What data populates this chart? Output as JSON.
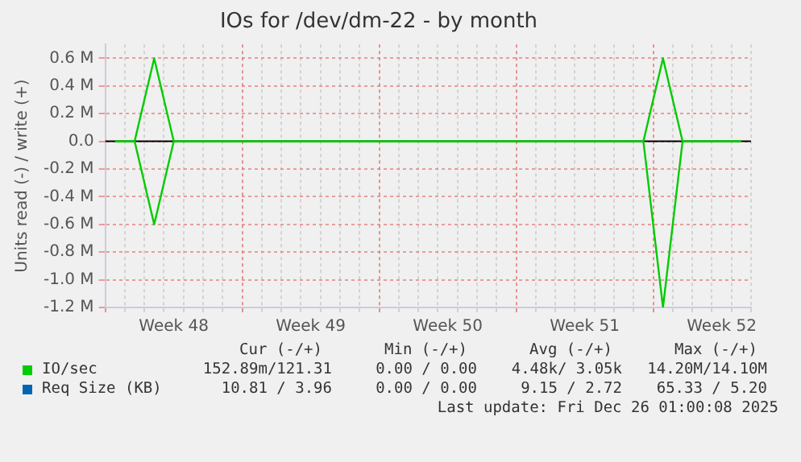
{
  "chart_data": {
    "type": "line",
    "title": "IOs for /dev/dm-22 - by month",
    "ylabel": "Units read (-) / write (+)",
    "categories": [
      null,
      null,
      null,
      "Week 48",
      null,
      null,
      null,
      null,
      null,
      null,
      "Week 49",
      null,
      null,
      null,
      null,
      null,
      null,
      "Week 50",
      null,
      null,
      null,
      null,
      null,
      null,
      "Week 51",
      null,
      null,
      null,
      null,
      null,
      null,
      "Week 52",
      null
    ],
    "ylim": [
      -1200000,
      700000
    ],
    "yticks": [
      {
        "value": -1200000,
        "label": "-1.2 M"
      },
      {
        "value": -1000000,
        "label": "-1.0 M"
      },
      {
        "value": -800000,
        "label": "-0.8 M"
      },
      {
        "value": -600000,
        "label": "-0.6 M"
      },
      {
        "value": -400000,
        "label": "-0.4 M"
      },
      {
        "value": -200000,
        "label": "-0.2 M"
      },
      {
        "value": 0,
        "label": "0.0"
      },
      {
        "value": 200000,
        "label": "0.2 M"
      },
      {
        "value": 400000,
        "label": "0.4 M"
      },
      {
        "value": 600000,
        "label": "0.6 M"
      }
    ],
    "grid": true,
    "legend": "bottom",
    "series": [
      {
        "name": "IO/sec",
        "color": "#00cc00",
        "values": [
          0,
          0,
          600000,
          0,
          0,
          0,
          0,
          0,
          0,
          0,
          0,
          0,
          0,
          0,
          0,
          0,
          0,
          0,
          0,
          0,
          0,
          0,
          0,
          0,
          0,
          0,
          0,
          0,
          600000,
          0,
          0,
          0,
          0
        ]
      },
      {
        "color": "#00cc00",
        "values": [
          0,
          0,
          -600000,
          0,
          0,
          0,
          0,
          0,
          0,
          0,
          0,
          0,
          0,
          0,
          0,
          0,
          0,
          0,
          0,
          0,
          0,
          0,
          0,
          0,
          0,
          0,
          0,
          0,
          -1200000,
          0,
          0,
          0,
          0
        ]
      },
      {
        "name": "Req Size (KB)",
        "color": "#0066b3",
        "values": [
          null,
          null,
          null,
          null,
          null,
          null,
          null,
          null,
          null,
          null,
          null,
          null,
          null,
          null,
          null,
          null,
          null,
          null,
          null,
          null,
          null,
          null,
          null,
          null,
          null,
          null,
          null,
          null,
          null,
          null,
          null,
          null,
          null
        ]
      }
    ],
    "annotations": [
      "Cur (-/+)",
      "Min (-/+)",
      "Avg (-/+)",
      "Max (-/+)",
      "152.89m/121.31",
      "0.00 / 0.00",
      "4.48k/ 3.05k",
      "14.20M/14.10M",
      "10.81 / 3.96",
      "0.00 / 0.00",
      "9.15 / 2.72",
      "65.33 / 5.20",
      "Last update: Fri Dec 26 01:00:08 2025"
    ]
  }
}
